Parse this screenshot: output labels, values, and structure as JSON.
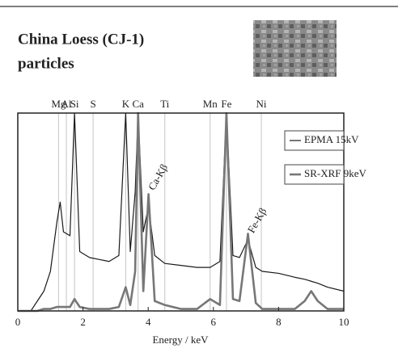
{
  "chart_data": {
    "type": "line",
    "title_lines": [
      "China Loess (CJ-1)",
      "particles"
    ],
    "x_label": "Energy / keV",
    "xlim": [
      0,
      10
    ],
    "xticks": [
      0,
      2,
      4,
      6,
      8,
      10
    ],
    "ylim": [
      0,
      100
    ],
    "legend": "upper right",
    "element_lines": [
      {
        "label": "Mg",
        "value": 1.25
      },
      {
        "label": "Al",
        "value": 1.49
      },
      {
        "label": "Si",
        "value": 1.74
      },
      {
        "label": "S",
        "value": 2.31
      },
      {
        "label": "K",
        "value": 3.31
      },
      {
        "label": "Ca",
        "value": 3.69
      },
      {
        "label": "Ti",
        "value": 4.51
      },
      {
        "label": "Mn",
        "value": 5.9
      },
      {
        "label": "Fe",
        "value": 6.4
      },
      {
        "label": "Ni",
        "value": 7.47
      }
    ],
    "annotations": [
      {
        "text": "Ca-Kβ",
        "x": 4.01
      },
      {
        "text": "Fe-Kβ",
        "x": 7.06
      }
    ],
    "x": [
      0,
      0.4,
      0.6,
      0.8,
      1.0,
      1.2,
      1.3,
      1.4,
      1.6,
      1.74,
      1.9,
      2.2,
      2.5,
      2.8,
      3.1,
      3.31,
      3.45,
      3.6,
      3.69,
      3.85,
      4.01,
      4.2,
      4.51,
      5.0,
      5.5,
      5.9,
      6.2,
      6.4,
      6.6,
      6.8,
      7.06,
      7.3,
      7.5,
      8.0,
      8.5,
      8.8,
      9.0,
      9.2,
      9.5,
      10.0
    ],
    "series": [
      {
        "name": "EPMA 15kV",
        "color": "#1a1a1a",
        "line_width": 1.2,
        "values": [
          0,
          0,
          5,
          10,
          20,
          45,
          55,
          40,
          38,
          100,
          30,
          27,
          26,
          25,
          28,
          100,
          30,
          60,
          100,
          40,
          53,
          28,
          24,
          23,
          22,
          22,
          25,
          100,
          28,
          27,
          36,
          22,
          20,
          19,
          17,
          16,
          15,
          14,
          12,
          10
        ]
      },
      {
        "name": "SR-XRF 9keV",
        "color": "#777777",
        "line_width": 2.6,
        "values": [
          0,
          0,
          0,
          1,
          1,
          2,
          2,
          2,
          2,
          6,
          2,
          1,
          1,
          1,
          2,
          12,
          3,
          20,
          100,
          10,
          59,
          5,
          3,
          1,
          1,
          6,
          3,
          100,
          6,
          5,
          39,
          4,
          1,
          1,
          1,
          5,
          10,
          5,
          1,
          1
        ]
      }
    ]
  }
}
